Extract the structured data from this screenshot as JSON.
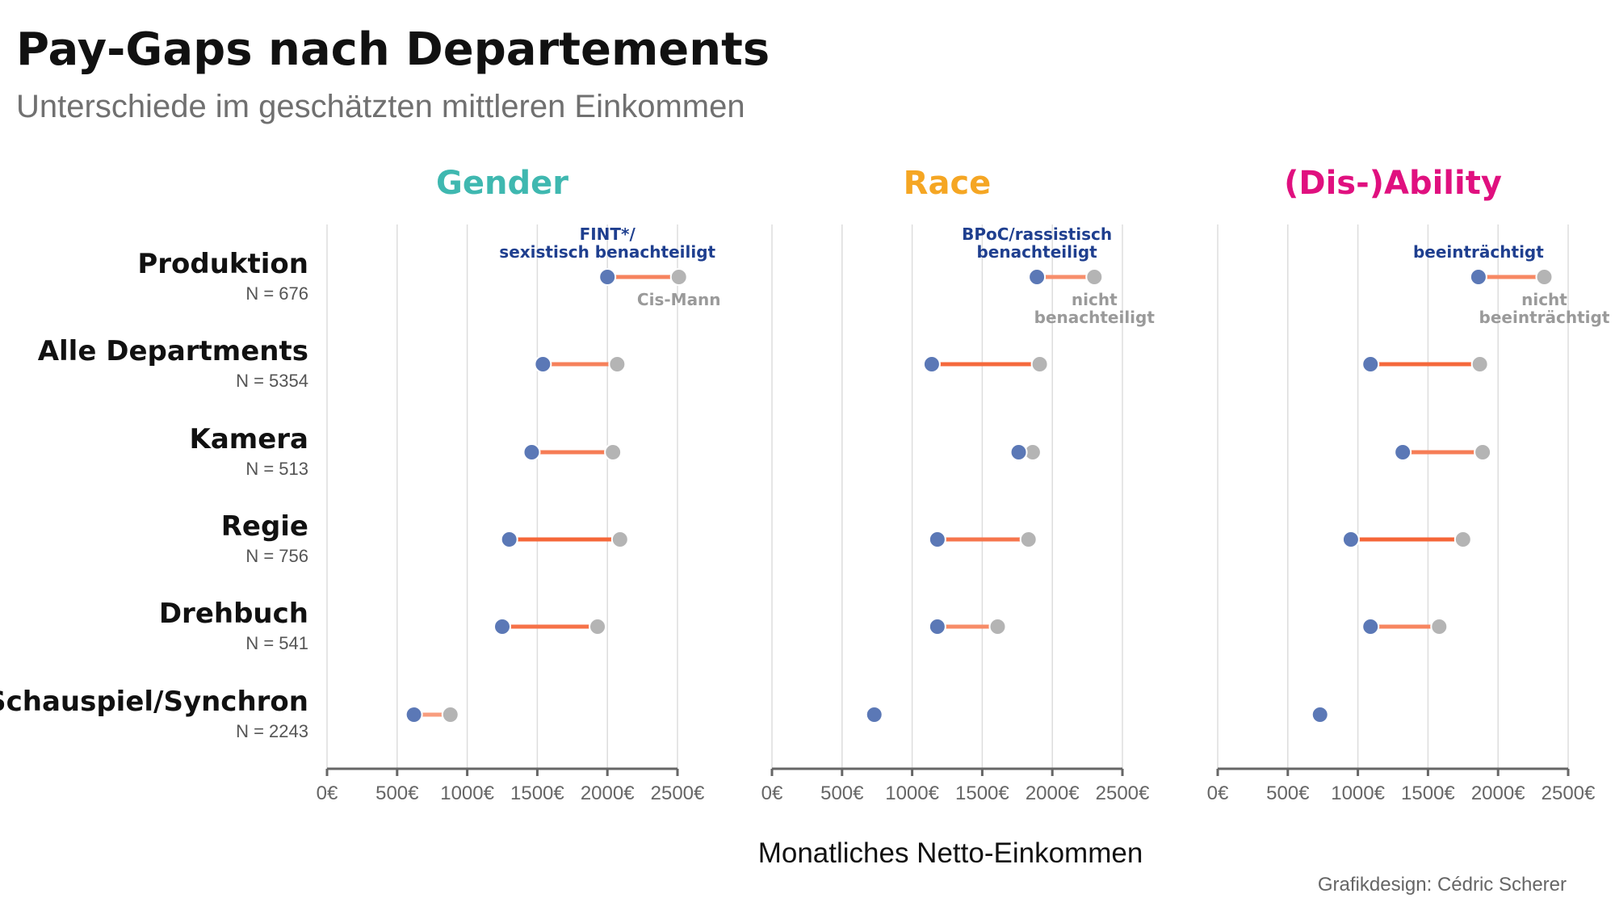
{
  "title": "Pay-Gaps nach Departements",
  "subtitle": "Unterschiede im geschätzten mittleren Einkommen",
  "credit": "Grafikdesign: Cédric Scherer",
  "colors": {
    "background": "#ffffff",
    "disadvantaged_point": "#5b78b6",
    "reference_point": "#b4b4b4",
    "gap_small": "#f9b8a0",
    "gap_large": "#f4511e",
    "grid": "#dddddd",
    "axis": "#666666"
  },
  "chart_data": {
    "type": "dumbbell",
    "xlabel": "Monatliches Netto-Einkommen",
    "xlim": [
      0,
      2500
    ],
    "x_ticks": [
      "0€",
      "500€",
      "1000€",
      "1500€",
      "2000€",
      "2500€"
    ],
    "categories": [
      {
        "name": "Produktion",
        "n_label": "N = 676"
      },
      {
        "name": "Alle Departments",
        "n_label": "N = 5354"
      },
      {
        "name": "Kamera",
        "n_label": "N = 513"
      },
      {
        "name": "Regie",
        "n_label": "N = 756"
      },
      {
        "name": "Drehbuch",
        "n_label": "N = 541"
      },
      {
        "name": "Schauspiel/Synchron",
        "n_label": "N = 2243"
      }
    ],
    "panels": [
      {
        "title": "Gender",
        "color": "#3fb8b0",
        "label_disadvantaged": [
          "FINT*/",
          "sexistisch benachteiligt"
        ],
        "label_reference": [
          "Cis-Mann"
        ],
        "disadvantaged": [
          2000,
          1540,
          1460,
          1300,
          1250,
          620
        ],
        "reference": [
          2510,
          2070,
          2040,
          2090,
          1930,
          880
        ]
      },
      {
        "title": "Race",
        "color": "#f5a623",
        "label_disadvantaged": [
          "BPoC/rassistisch",
          "benachteiligt"
        ],
        "label_reference": [
          "nicht",
          "benachteiligt"
        ],
        "disadvantaged": [
          1890,
          1140,
          1760,
          1180,
          1180,
          730
        ],
        "reference": [
          2300,
          1910,
          1860,
          1830,
          1610,
          740
        ]
      },
      {
        "title": "(Dis-)Ability",
        "color": "#e0107f",
        "label_disadvantaged": [
          "beeinträchtigt"
        ],
        "label_reference": [
          "nicht",
          "beeinträchtigt"
        ],
        "disadvantaged": [
          1860,
          1090,
          1320,
          950,
          1090,
          730
        ],
        "reference": [
          2330,
          1870,
          1890,
          1750,
          1580,
          740
        ]
      }
    ]
  }
}
